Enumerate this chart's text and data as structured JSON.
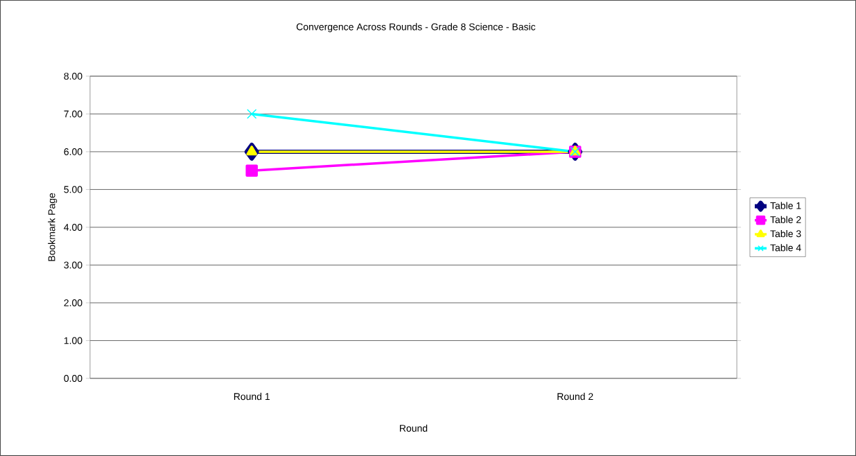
{
  "chart_data": {
    "type": "line",
    "title": "Convergence Across Rounds - Grade 8 Science - Basic",
    "xlabel": "Round",
    "ylabel": "Bookmark Page",
    "categories": [
      "Round 1",
      "Round 2"
    ],
    "series": [
      {
        "name": "Table 1",
        "color": "#000080",
        "marker": "diamond",
        "values": [
          6,
          6
        ]
      },
      {
        "name": "Table 2",
        "color": "#ff00ff",
        "marker": "square",
        "values": [
          5.5,
          6
        ]
      },
      {
        "name": "Table 3",
        "color": "#ffff00",
        "marker": "triangle",
        "values": [
          6,
          6
        ]
      },
      {
        "name": "Table 4",
        "color": "#00ffff",
        "marker": "cross",
        "values": [
          7,
          6
        ]
      }
    ],
    "ylim": [
      0,
      8
    ],
    "yticks": [
      {
        "value": 0,
        "label": "0.00"
      },
      {
        "value": 1,
        "label": "1.00"
      },
      {
        "value": 2,
        "label": "2.00"
      },
      {
        "value": 3,
        "label": "3.00"
      },
      {
        "value": 4,
        "label": "4.00"
      },
      {
        "value": 5,
        "label": "5.00"
      },
      {
        "value": 6,
        "label": "6.00"
      },
      {
        "value": 7,
        "label": "7.00"
      },
      {
        "value": 8,
        "label": "8.00"
      }
    ],
    "grid": "y",
    "legend": "right",
    "line_style": "solid"
  }
}
